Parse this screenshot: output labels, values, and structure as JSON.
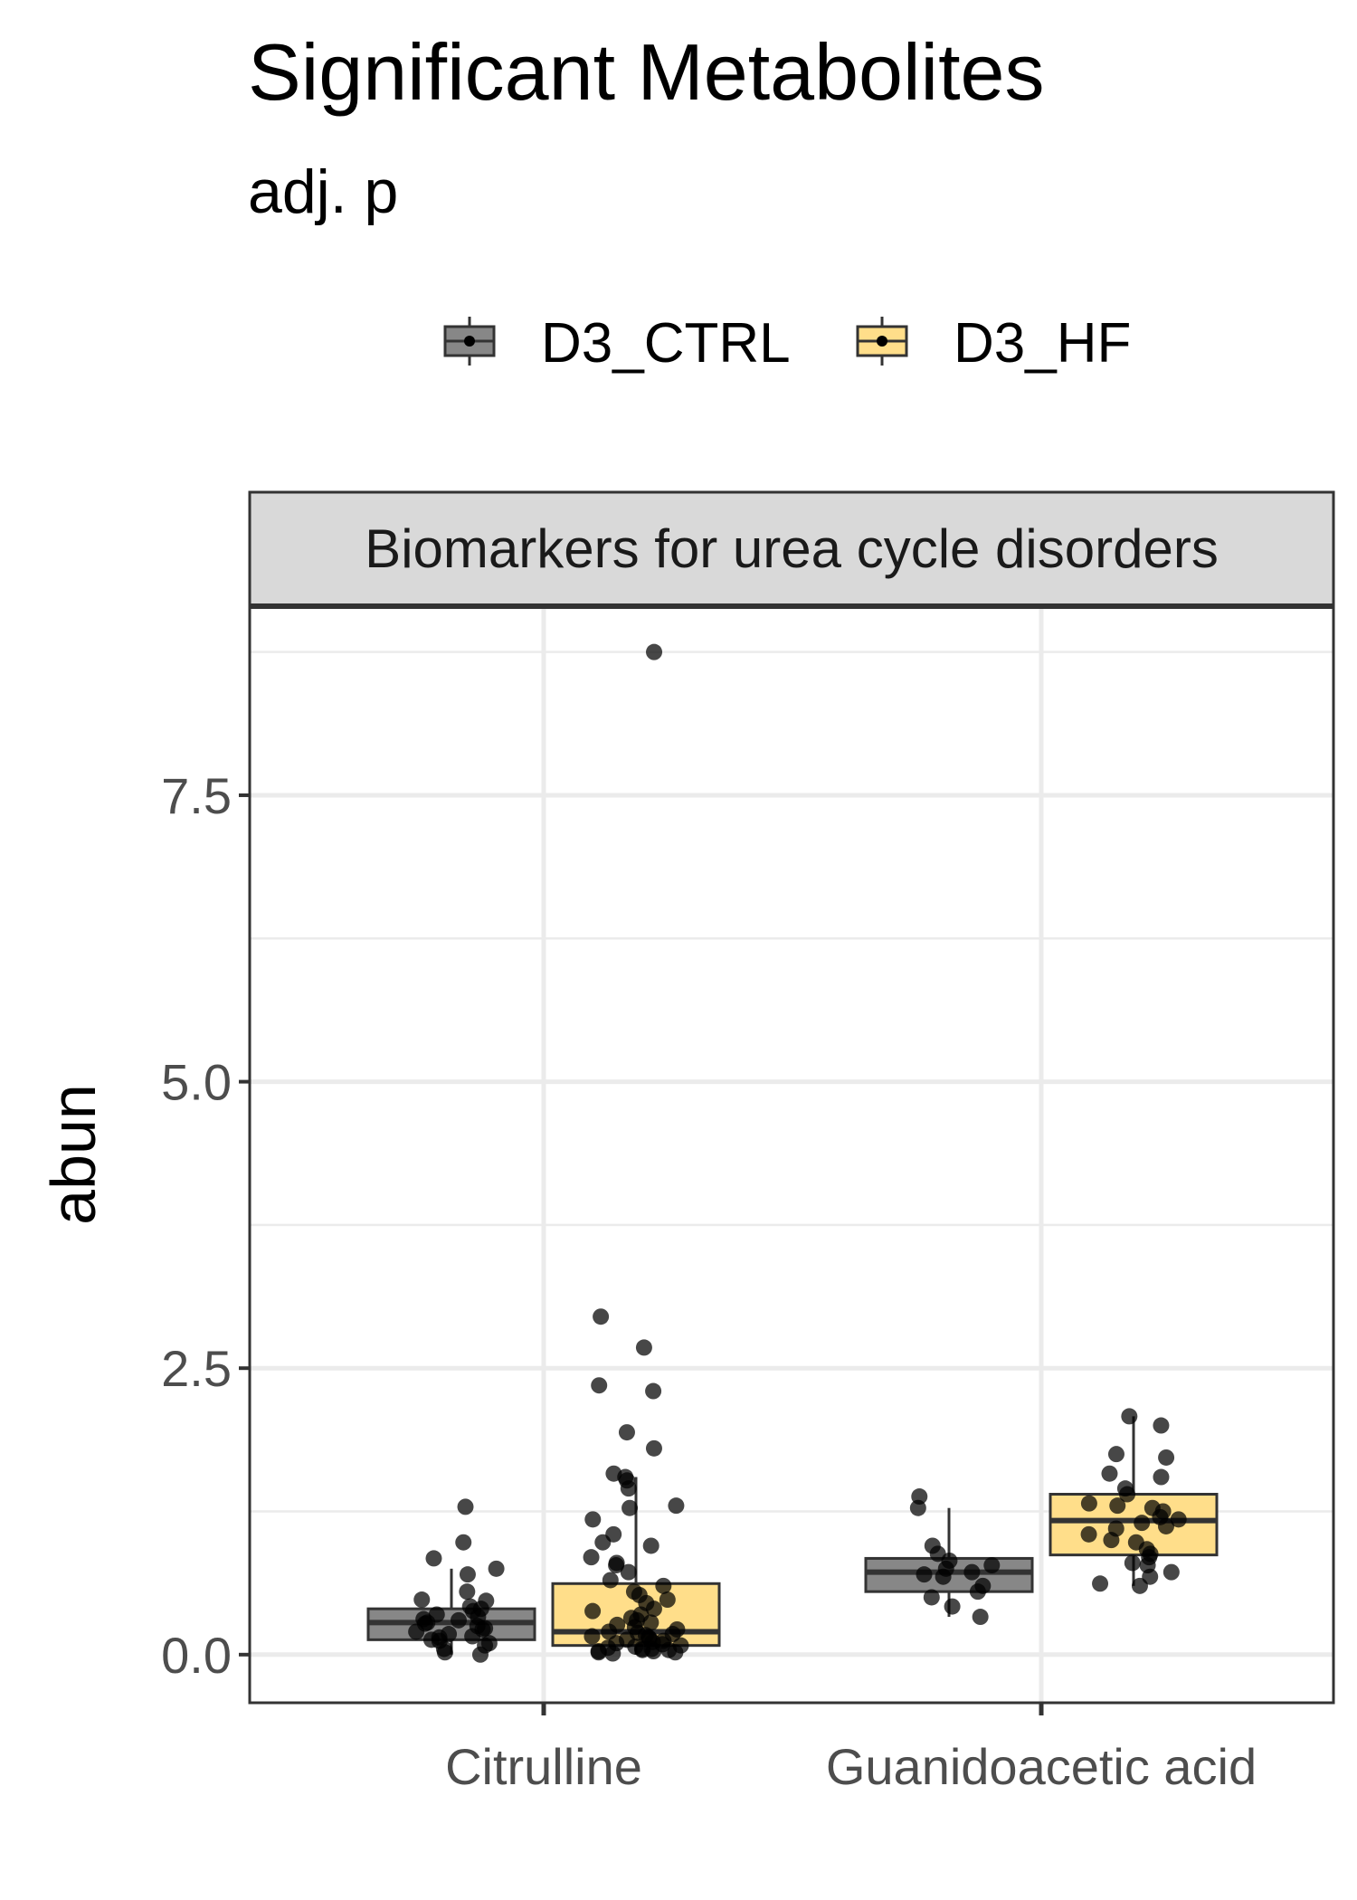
{
  "chart_data": {
    "type": "box",
    "title": "Significant Metabolites",
    "subtitle": "adj. p",
    "ylabel": "abun",
    "xlabel": "",
    "facet_label": "Biomarkers for urea cycle disorders",
    "ylim": [
      -0.42,
      9.15
    ],
    "yticks": [
      0.0,
      2.5,
      5.0,
      7.5
    ],
    "ytick_labels": [
      "0.0",
      "2.5",
      "5.0",
      "7.5"
    ],
    "grid": true,
    "legend_position": "top",
    "categories": [
      "Citrulline",
      "Guanidoacetic acid"
    ],
    "series": [
      {
        "name": "D3_CTRL",
        "color": "#878787",
        "boxes": [
          {
            "category": "Citrulline",
            "q1": 0.13,
            "median": 0.28,
            "q3": 0.4,
            "whisker_low": 0.0,
            "whisker_high": 0.75,
            "points": [
              1.29,
              0.84,
              0.98,
              0.75,
              0.7,
              0.55,
              0.48,
              0.47,
              0.42,
              0.4,
              0.38,
              0.35,
              0.33,
              0.31,
              0.3,
              0.28,
              0.27,
              0.25,
              0.23,
              0.22,
              0.2,
              0.18,
              0.16,
              0.15,
              0.13,
              0.12,
              0.1,
              0.08,
              0.05,
              0.02,
              0.0
            ]
          },
          {
            "category": "Guanidoacetic acid",
            "q1": 0.55,
            "median": 0.72,
            "q3": 0.84,
            "whisker_low": 0.33,
            "whisker_high": 1.28,
            "points": [
              1.38,
              1.28,
              0.95,
              0.88,
              0.82,
              0.78,
              0.75,
              0.72,
              0.7,
              0.68,
              0.6,
              0.55,
              0.5,
              0.42,
              0.33
            ]
          }
        ]
      },
      {
        "name": "D3_HF",
        "color": "#ffde8a",
        "boxes": [
          {
            "category": "Citrulline",
            "q1": 0.08,
            "median": 0.2,
            "q3": 0.62,
            "whisker_low": 0.0,
            "whisker_high": 1.55,
            "points": [
              8.75,
              2.95,
              2.68,
              2.35,
              2.3,
              1.94,
              1.8,
              1.58,
              1.55,
              1.52,
              1.45,
              1.3,
              1.28,
              1.18,
              1.05,
              0.98,
              0.95,
              0.85,
              0.8,
              0.78,
              0.72,
              0.65,
              0.6,
              0.55,
              0.52,
              0.48,
              0.45,
              0.4,
              0.38,
              0.35,
              0.32,
              0.3,
              0.28,
              0.26,
              0.24,
              0.22,
              0.2,
              0.19,
              0.18,
              0.17,
              0.16,
              0.15,
              0.14,
              0.13,
              0.12,
              0.11,
              0.1,
              0.09,
              0.08,
              0.07,
              0.06,
              0.05,
              0.05,
              0.04,
              0.04,
              0.03,
              0.03,
              0.02,
              0.02,
              0.01
            ]
          },
          {
            "category": "Guanidoacetic acid",
            "q1": 0.87,
            "median": 1.17,
            "q3": 1.4,
            "whisker_low": 0.6,
            "whisker_high": 2.08,
            "points": [
              2.08,
              2.0,
              1.75,
              1.72,
              1.58,
              1.55,
              1.45,
              1.4,
              1.32,
              1.3,
              1.28,
              1.25,
              1.2,
              1.18,
              1.15,
              1.12,
              1.1,
              1.05,
              1.0,
              0.98,
              0.92,
              0.88,
              0.85,
              0.8,
              0.78,
              0.72,
              0.68,
              0.62,
              0.6
            ]
          }
        ]
      }
    ]
  }
}
